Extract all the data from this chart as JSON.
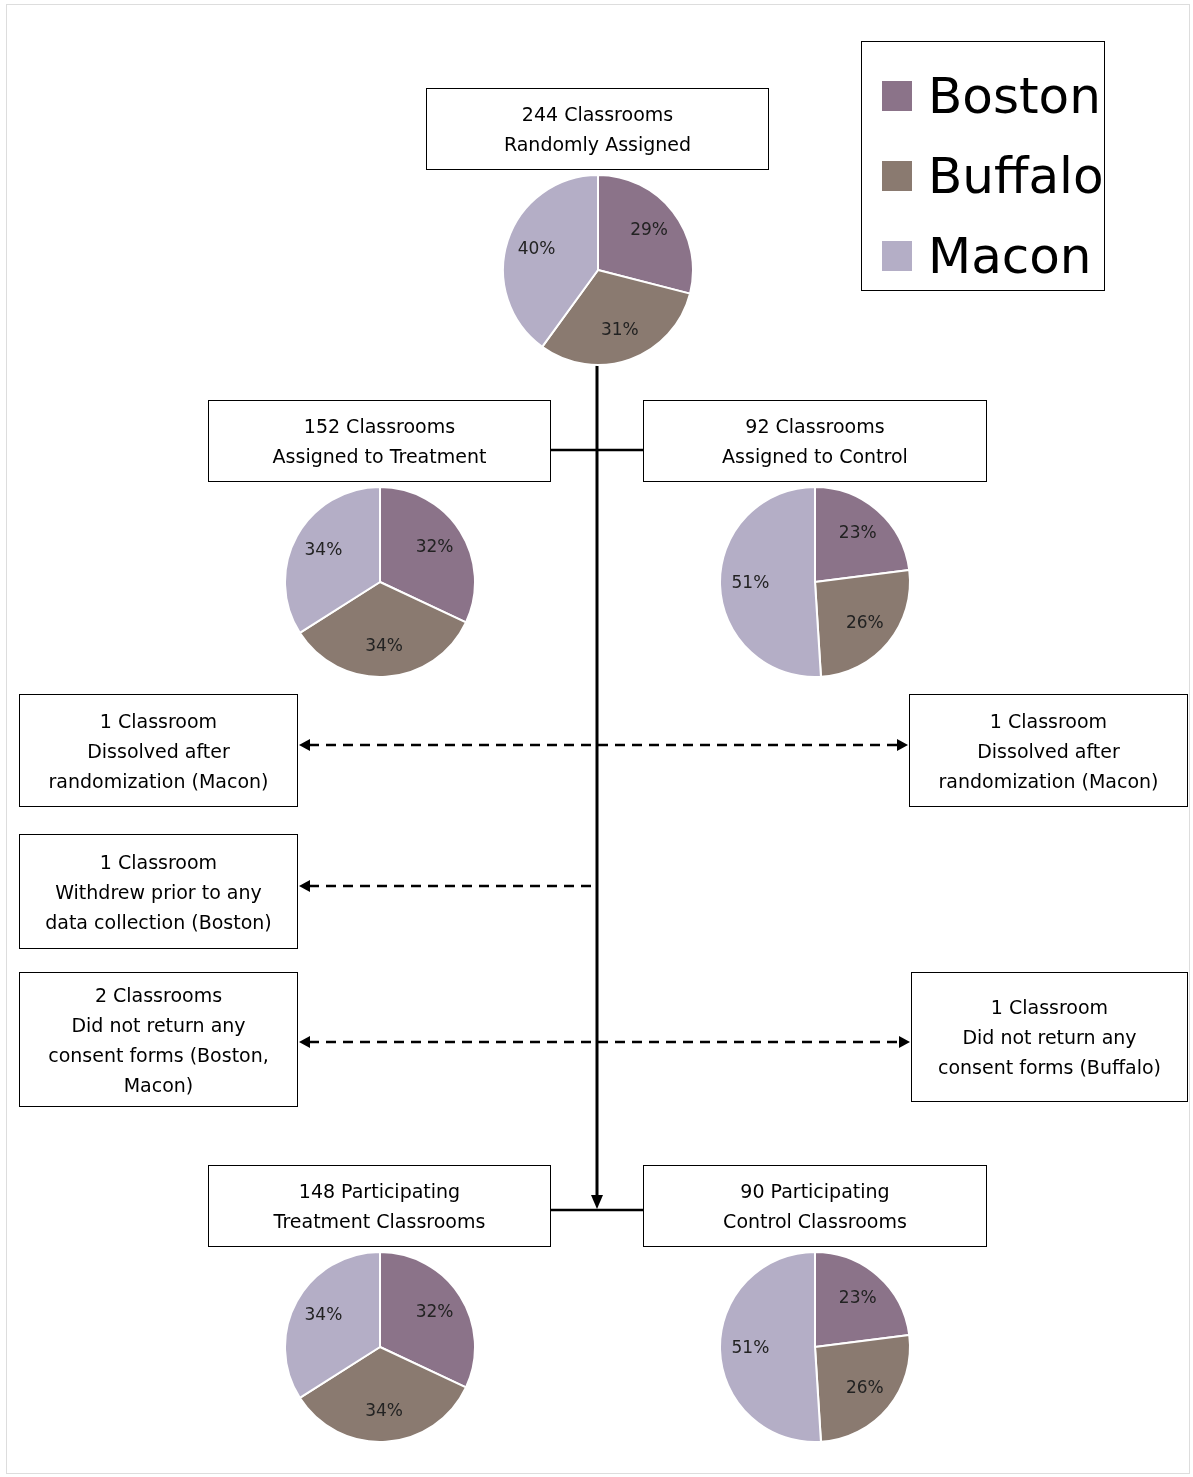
{
  "chart_data": [
    {
      "type": "pie",
      "title": "244 Classrooms\nRandomly Assigned",
      "categories": [
        "Boston",
        "Buffalo",
        "Macon"
      ],
      "values": [
        29,
        31,
        40
      ],
      "value_labels": [
        "29%",
        "31%",
        "40%"
      ],
      "colors": [
        "#8b7389",
        "#8a7a70",
        "#b4aec6"
      ],
      "legend": "top right"
    },
    {
      "type": "pie",
      "title": "152 Classrooms\nAssigned to Treatment",
      "categories": [
        null,
        null,
        null
      ],
      "values": [
        32,
        34,
        34
      ],
      "value_labels": [
        "32%",
        "34%",
        "34%"
      ],
      "colors": [
        "#8b7389",
        "#8a7a70",
        "#b4aec6"
      ]
    },
    {
      "type": "pie",
      "title": "92 Classrooms\nAssigned to Control",
      "categories": [
        null,
        null,
        null
      ],
      "values": [
        23,
        26,
        51
      ],
      "value_labels": [
        "23%",
        "26%",
        "51%"
      ],
      "colors": [
        "#8b7389",
        "#8a7a70",
        "#b4aec6"
      ]
    },
    {
      "type": "other",
      "annotations": [
        "1 Classroom\nDissolved after\nrandomization (Macon)"
      ]
    },
    {
      "type": "other",
      "annotations": [
        "1 Classroom\nDissolved after\nrandomization (Macon)"
      ]
    },
    {
      "type": "other",
      "annotations": [
        "1 Classroom\nWithdrew prior to any\ndata collection (Boston)"
      ]
    },
    {
      "type": "other",
      "annotations": [
        "2 Classrooms\nDid not return any\nconsent forms (Boston,\nMacon)"
      ]
    },
    {
      "type": "other",
      "annotations": [
        "1 Classroom\nDid not return any\nconsent forms (Buffalo)"
      ]
    },
    {
      "type": "pie",
      "title": "148 Participating\nTreatment Classrooms",
      "categories": [
        null,
        null,
        null
      ],
      "values": [
        32,
        34,
        34
      ],
      "value_labels": [
        "32%",
        "34%",
        "34%"
      ],
      "colors": [
        "#8b7389",
        "#8a7a70",
        "#b4aec6"
      ]
    },
    {
      "type": "pie",
      "title": "90 Participating\nControl Classrooms",
      "categories": [
        null,
        null,
        null
      ],
      "values": [
        23,
        26,
        51
      ],
      "value_labels": [
        "23%",
        "26%",
        "51%"
      ],
      "colors": [
        "#8b7389",
        "#8a7a70",
        "#b4aec6"
      ]
    }
  ]
}
